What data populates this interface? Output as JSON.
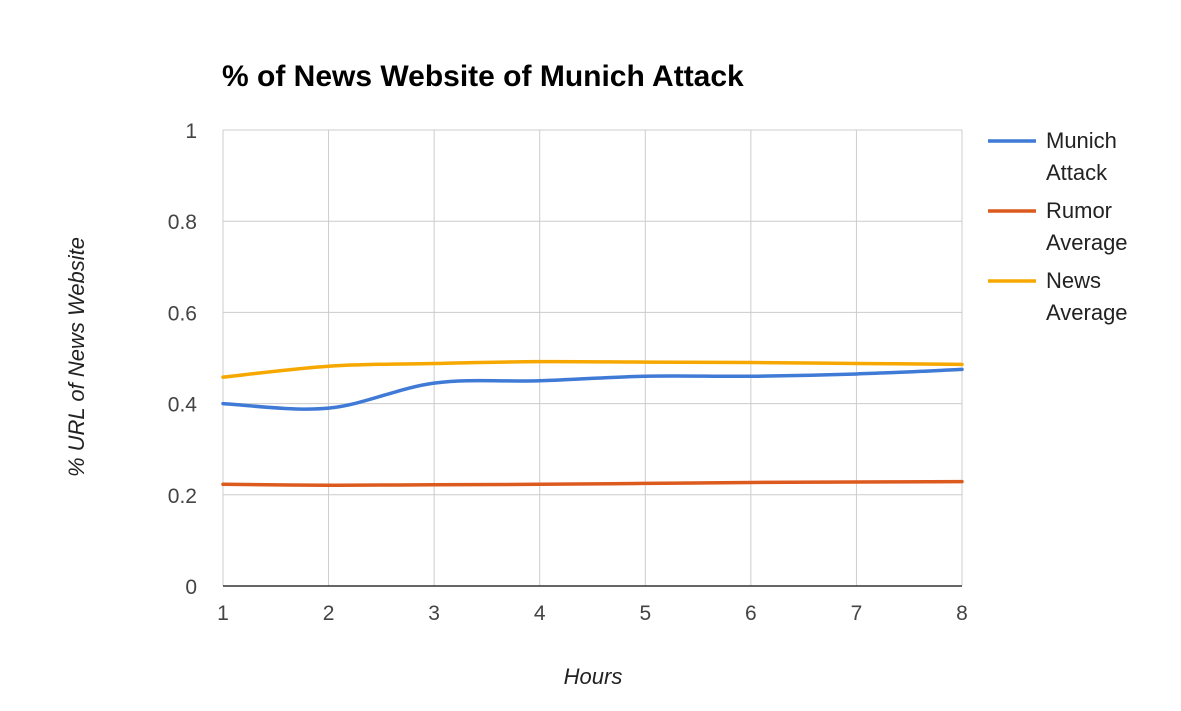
{
  "chart_data": {
    "type": "line",
    "title": "% of News Website of Munich Attack",
    "xlabel": "Hours",
    "ylabel": "% URL of News Website",
    "x": [
      1,
      2,
      3,
      4,
      5,
      6,
      7,
      8
    ],
    "xlim": [
      1,
      8
    ],
    "ylim": [
      0,
      1
    ],
    "yticks": [
      "0",
      "0.2",
      "0.4",
      "0.6",
      "0.8",
      "1"
    ],
    "xticks": [
      "1",
      "2",
      "3",
      "4",
      "5",
      "6",
      "7",
      "8"
    ],
    "grid": true,
    "legend_position": "right",
    "series": [
      {
        "name": "Munich Attack",
        "name_lines": [
          "Munich",
          "Attack"
        ],
        "color": "#3f7ad6",
        "values": [
          0.4,
          0.39,
          0.445,
          0.45,
          0.46,
          0.46,
          0.465,
          0.475
        ]
      },
      {
        "name": "Rumor Average",
        "name_lines": [
          "Rumor",
          "Average"
        ],
        "color": "#dc5a1e",
        "values": [
          0.223,
          0.221,
          0.222,
          0.223,
          0.225,
          0.227,
          0.228,
          0.229
        ]
      },
      {
        "name": "News Average",
        "name_lines": [
          "News",
          "Average"
        ],
        "color": "#f6a800",
        "values": [
          0.458,
          0.482,
          0.488,
          0.492,
          0.491,
          0.49,
          0.488,
          0.486
        ]
      }
    ]
  }
}
